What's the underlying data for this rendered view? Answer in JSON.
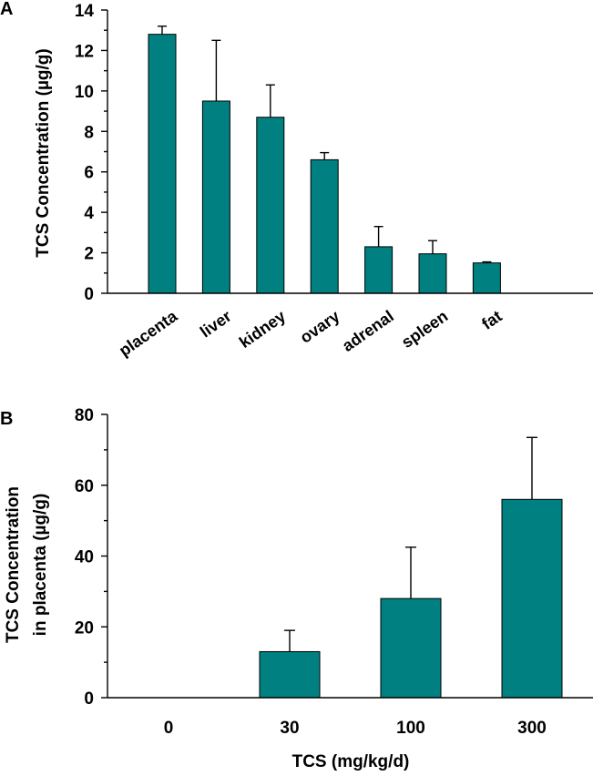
{
  "chart_data": [
    {
      "panel": "A",
      "type": "bar",
      "ylabel": "TCS Concentration (µg/g)",
      "xlabel": "",
      "categories": [
        "placenta",
        "liver",
        "kidney",
        "ovary",
        "adrenal",
        "spleen",
        "fat"
      ],
      "values": [
        12.8,
        9.5,
        8.7,
        6.6,
        2.3,
        1.95,
        1.5
      ],
      "errors": [
        0.4,
        3.0,
        1.6,
        0.35,
        1.0,
        0.65,
        0.05
      ],
      "ylim": [
        0,
        14
      ],
      "yticks": [
        0,
        2,
        4,
        6,
        8,
        10,
        12,
        14
      ],
      "bar_color": "#008080"
    },
    {
      "panel": "B",
      "type": "bar",
      "ylabel_lines": [
        "TCS Concentration",
        "in placenta (µg/g)"
      ],
      "xlabel": "TCS (mg/kg/d)",
      "categories": [
        "0",
        "30",
        "100",
        "300"
      ],
      "values": [
        0,
        13,
        28,
        56
      ],
      "errors": [
        0,
        6,
        14.5,
        17.5
      ],
      "ylim": [
        0,
        80
      ],
      "yticks": [
        0,
        20,
        40,
        60,
        80
      ],
      "bar_color": "#008080"
    }
  ]
}
